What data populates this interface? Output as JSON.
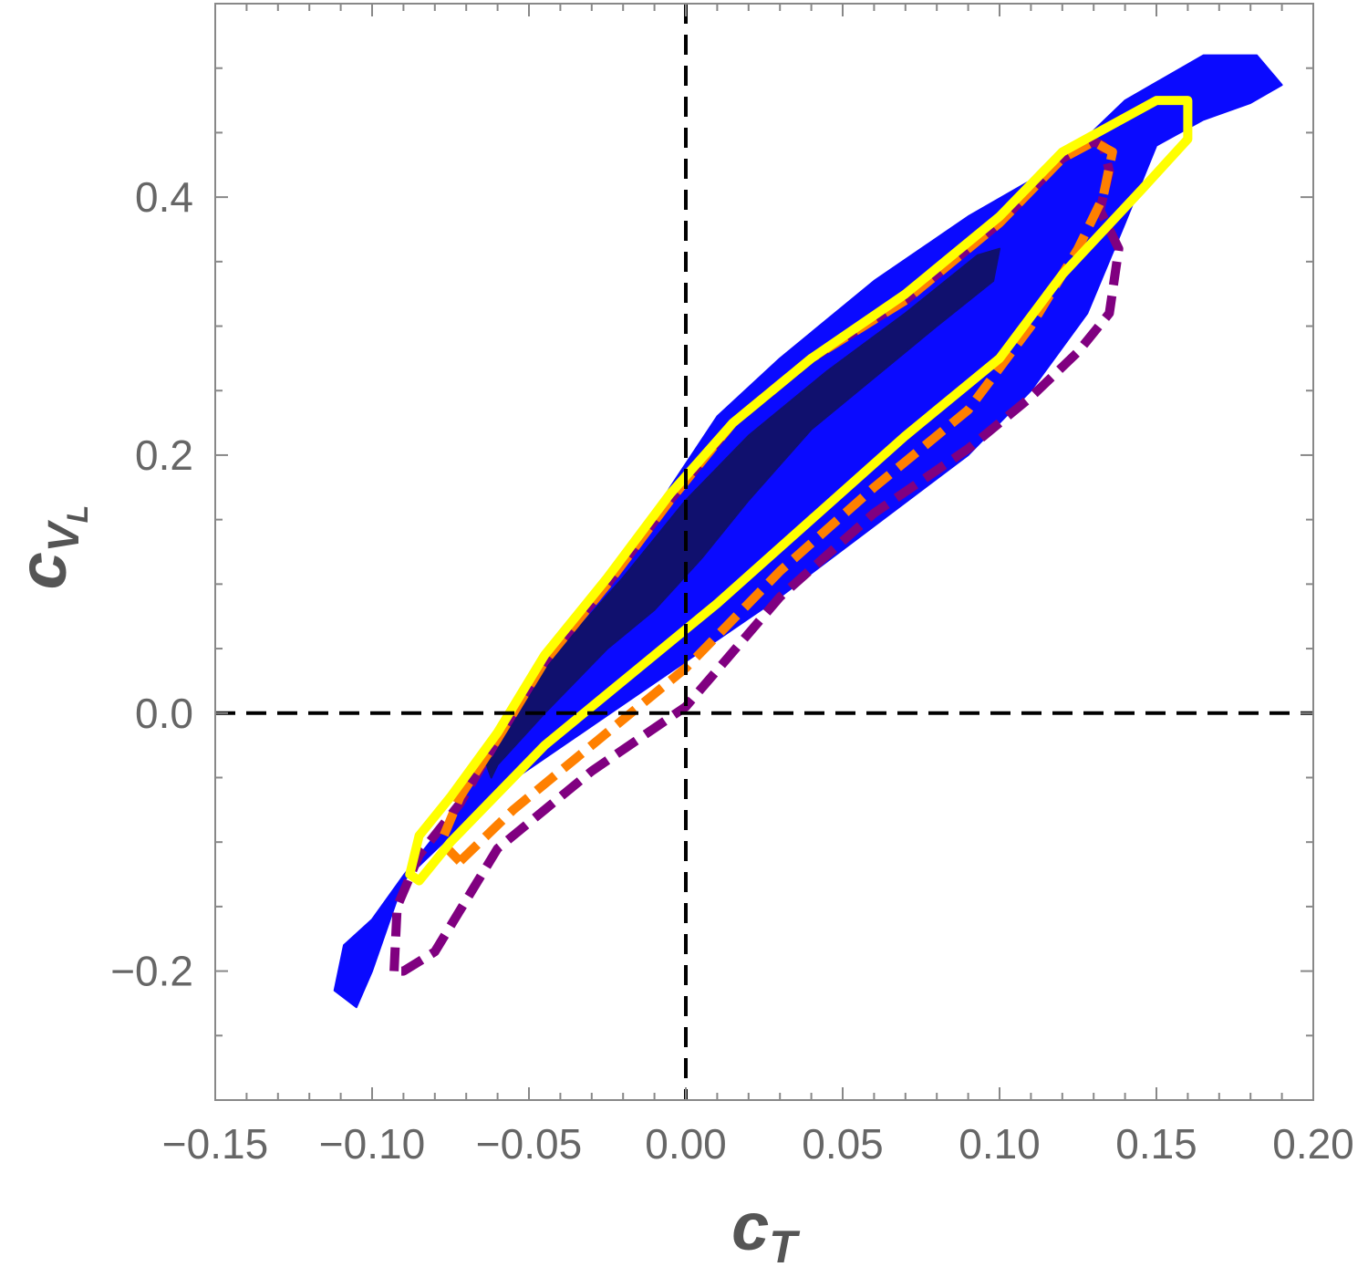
{
  "chart_data": {
    "type": "contour",
    "xlabel": "c",
    "xlabel_sub": "T",
    "ylabel": "c",
    "ylabel_sub": "V",
    "ylabel_subsub": "L",
    "xlim": [
      -0.15,
      0.2
    ],
    "ylim": [
      -0.3,
      0.55
    ],
    "x_ticks": [
      -0.15,
      -0.1,
      -0.05,
      0.0,
      0.05,
      0.1,
      0.15,
      0.2
    ],
    "x_tick_labels": [
      "−0.15",
      "−0.10",
      "−0.05",
      "0.00",
      "0.05",
      "0.10",
      "0.15",
      "0.20"
    ],
    "y_ticks": [
      -0.2,
      0.0,
      0.2,
      0.4
    ],
    "y_tick_labels": [
      "−0.2",
      "0.0",
      "0.2",
      "0.4"
    ],
    "reference_lines": {
      "x": 0.0,
      "y": 0.0,
      "style": "dashed",
      "color": "#000000"
    },
    "grid": false,
    "legend": "none",
    "regions": [
      {
        "kind": "filled",
        "color": "#0a0aff",
        "points": [
          [
            -0.105,
            -0.228
          ],
          [
            -0.112,
            -0.215
          ],
          [
            -0.109,
            -0.18
          ],
          [
            -0.1,
            -0.16
          ],
          [
            -0.09,
            -0.126
          ],
          [
            -0.075,
            -0.08
          ],
          [
            -0.065,
            -0.04
          ],
          [
            -0.052,
            0.005
          ],
          [
            -0.036,
            0.06
          ],
          [
            -0.02,
            0.115
          ],
          [
            -0.005,
            0.175
          ],
          [
            0.01,
            0.23
          ],
          [
            0.03,
            0.275
          ],
          [
            0.06,
            0.335
          ],
          [
            0.09,
            0.385
          ],
          [
            0.115,
            0.42
          ],
          [
            0.125,
            0.44
          ],
          [
            0.14,
            0.475
          ],
          [
            0.165,
            0.51
          ],
          [
            0.182,
            0.51
          ],
          [
            0.19,
            0.487
          ],
          [
            0.18,
            0.473
          ],
          [
            0.165,
            0.46
          ],
          [
            0.15,
            0.44
          ],
          [
            0.14,
            0.38
          ],
          [
            0.128,
            0.31
          ],
          [
            0.11,
            0.25
          ],
          [
            0.09,
            0.2
          ],
          [
            0.06,
            0.145
          ],
          [
            0.03,
            0.09
          ],
          [
            0.0,
            0.04
          ],
          [
            -0.03,
            -0.01
          ],
          [
            -0.06,
            -0.06
          ],
          [
            -0.09,
            -0.13
          ],
          [
            -0.1,
            -0.2
          ]
        ]
      },
      {
        "kind": "filled",
        "color": "#10106e",
        "points": [
          [
            -0.062,
            -0.05
          ],
          [
            -0.065,
            -0.03
          ],
          [
            -0.055,
            0.01
          ],
          [
            -0.04,
            0.05
          ],
          [
            -0.02,
            0.105
          ],
          [
            0.0,
            0.165
          ],
          [
            0.02,
            0.215
          ],
          [
            0.045,
            0.265
          ],
          [
            0.07,
            0.31
          ],
          [
            0.093,
            0.355
          ],
          [
            0.1,
            0.36
          ],
          [
            0.098,
            0.335
          ],
          [
            0.08,
            0.3
          ],
          [
            0.06,
            0.26
          ],
          [
            0.04,
            0.22
          ],
          [
            0.02,
            0.165
          ],
          [
            0.005,
            0.12
          ],
          [
            -0.01,
            0.08
          ],
          [
            -0.025,
            0.05
          ],
          [
            -0.045,
            0.0
          ],
          [
            -0.06,
            -0.04
          ]
        ]
      },
      {
        "kind": "outline",
        "color": "#800080",
        "style": "dashed",
        "points": [
          [
            -0.093,
            -0.2
          ],
          [
            -0.092,
            -0.15
          ],
          [
            -0.085,
            -0.11
          ],
          [
            -0.072,
            -0.07
          ],
          [
            -0.06,
            -0.02
          ],
          [
            -0.045,
            0.04
          ],
          [
            -0.025,
            0.1
          ],
          [
            -0.005,
            0.165
          ],
          [
            0.015,
            0.225
          ],
          [
            0.04,
            0.275
          ],
          [
            0.07,
            0.32
          ],
          [
            0.1,
            0.38
          ],
          [
            0.12,
            0.43
          ],
          [
            0.13,
            0.443
          ],
          [
            0.133,
            0.44
          ],
          [
            0.135,
            0.42
          ],
          [
            0.132,
            0.39
          ],
          [
            0.138,
            0.36
          ],
          [
            0.135,
            0.31
          ],
          [
            0.125,
            0.28
          ],
          [
            0.11,
            0.245
          ],
          [
            0.09,
            0.205
          ],
          [
            0.06,
            0.155
          ],
          [
            0.03,
            0.09
          ],
          [
            0.0,
            0.005
          ],
          [
            -0.03,
            -0.045
          ],
          [
            -0.06,
            -0.105
          ],
          [
            -0.08,
            -0.185
          ],
          [
            -0.09,
            -0.2
          ]
        ]
      },
      {
        "kind": "outline",
        "color": "#ff8000",
        "style": "dashed",
        "points": [
          [
            -0.072,
            -0.115
          ],
          [
            -0.078,
            -0.1
          ],
          [
            -0.072,
            -0.065
          ],
          [
            -0.06,
            -0.02
          ],
          [
            -0.045,
            0.04
          ],
          [
            -0.025,
            0.1
          ],
          [
            -0.005,
            0.165
          ],
          [
            0.015,
            0.225
          ],
          [
            0.04,
            0.275
          ],
          [
            0.07,
            0.32
          ],
          [
            0.1,
            0.38
          ],
          [
            0.12,
            0.43
          ],
          [
            0.13,
            0.443
          ],
          [
            0.136,
            0.435
          ],
          [
            0.133,
            0.4
          ],
          [
            0.125,
            0.36
          ],
          [
            0.11,
            0.3
          ],
          [
            0.09,
            0.235
          ],
          [
            0.06,
            0.175
          ],
          [
            0.03,
            0.11
          ],
          [
            0.0,
            0.035
          ],
          [
            -0.03,
            -0.025
          ],
          [
            -0.055,
            -0.075
          ],
          [
            -0.072,
            -0.115
          ]
        ]
      },
      {
        "kind": "outline",
        "color": "#ffff00",
        "style": "solid",
        "points": [
          [
            -0.088,
            -0.125
          ],
          [
            -0.085,
            -0.095
          ],
          [
            -0.075,
            -0.065
          ],
          [
            -0.06,
            -0.015
          ],
          [
            -0.045,
            0.045
          ],
          [
            -0.025,
            0.105
          ],
          [
            -0.005,
            0.17
          ],
          [
            0.015,
            0.225
          ],
          [
            0.04,
            0.275
          ],
          [
            0.07,
            0.325
          ],
          [
            0.1,
            0.385
          ],
          [
            0.12,
            0.435
          ],
          [
            0.15,
            0.475
          ],
          [
            0.16,
            0.475
          ],
          [
            0.16,
            0.445
          ],
          [
            0.145,
            0.405
          ],
          [
            0.12,
            0.34
          ],
          [
            0.1,
            0.275
          ],
          [
            0.07,
            0.215
          ],
          [
            0.04,
            0.15
          ],
          [
            0.01,
            0.085
          ],
          [
            -0.015,
            0.035
          ],
          [
            -0.045,
            -0.025
          ],
          [
            -0.075,
            -0.1
          ],
          [
            -0.085,
            -0.13
          ]
        ]
      }
    ]
  }
}
